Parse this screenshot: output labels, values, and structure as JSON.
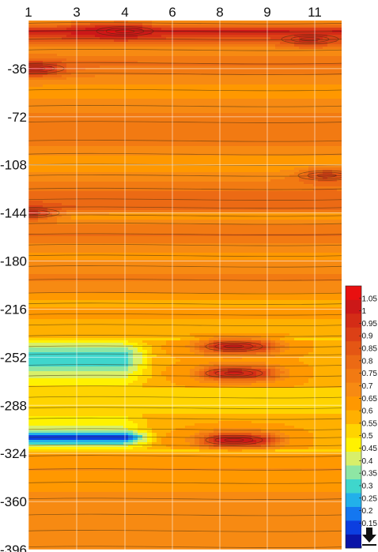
{
  "chart_data": {
    "type": "heatmap",
    "title": "",
    "xlabel": "",
    "ylabel": "",
    "x_ticks": [
      "1",
      "3",
      "4",
      "6",
      "8",
      "9",
      "11"
    ],
    "y_ticks": [
      "-36",
      "-72",
      "-108",
      "-144",
      "-180",
      "-216",
      "-252",
      "-288",
      "-324",
      "-360",
      "-396"
    ],
    "ylim": [
      -396,
      0
    ],
    "grid": true,
    "colorbar": {
      "range": [
        0.05,
        1.1
      ],
      "ticks": [
        "1.05",
        "1",
        "0.95",
        "0.9",
        "0.85",
        "0.8",
        "0.75",
        "0.7",
        "0.65",
        "0.6",
        "0.55",
        "0.5",
        "0.45",
        "0.4",
        "0.35",
        "0.3",
        "0.25",
        "0.2",
        "0.15"
      ],
      "colors": [
        "#0a14a8",
        "#0c3ee0",
        "#1477f0",
        "#22b0ea",
        "#3fd6cc",
        "#8ee6a4",
        "#d8ef6a",
        "#fff200",
        "#ffd400",
        "#ffb000",
        "#ff9800",
        "#f78a12",
        "#f27a12",
        "#ec6a14",
        "#e45614",
        "#dc4016",
        "#d42c16",
        "#cc1818",
        "#e81010"
      ],
      "position": "right"
    },
    "bands": [
      {
        "y": -2,
        "v": 0.68
      },
      {
        "y": -8,
        "v": 1.0
      },
      {
        "y": -14,
        "v": 0.85
      },
      {
        "y": -22,
        "v": 0.66
      },
      {
        "y": -32,
        "v": 0.78
      },
      {
        "y": -40,
        "v": 0.72
      },
      {
        "y": -52,
        "v": 0.63
      },
      {
        "y": -64,
        "v": 0.68
      },
      {
        "y": -76,
        "v": 0.76
      },
      {
        "y": -90,
        "v": 0.74
      },
      {
        "y": -100,
        "v": 0.67
      },
      {
        "y": -108,
        "v": 0.6
      },
      {
        "y": -116,
        "v": 0.68
      },
      {
        "y": -126,
        "v": 0.76
      },
      {
        "y": -134,
        "v": 0.8
      },
      {
        "y": -140,
        "v": 0.82
      },
      {
        "y": -146,
        "v": 0.6
      },
      {
        "y": -152,
        "v": 0.7
      },
      {
        "y": -160,
        "v": 0.78
      },
      {
        "y": -168,
        "v": 0.7
      },
      {
        "y": -176,
        "v": 0.64
      },
      {
        "y": -184,
        "v": 0.7
      },
      {
        "y": -194,
        "v": 0.72
      },
      {
        "y": -204,
        "v": 0.66
      },
      {
        "y": -212,
        "v": 0.58
      },
      {
        "y": -220,
        "v": 0.64
      },
      {
        "y": -228,
        "v": 0.56
      },
      {
        "y": -236,
        "v": 0.6
      },
      {
        "y": -244,
        "v": 0.38
      },
      {
        "y": -250,
        "v": 0.3
      },
      {
        "y": -258,
        "v": 0.32
      },
      {
        "y": -266,
        "v": 0.42
      },
      {
        "y": -274,
        "v": 0.5
      },
      {
        "y": -282,
        "v": 0.55
      },
      {
        "y": -290,
        "v": 0.52
      },
      {
        "y": -298,
        "v": 0.48
      },
      {
        "y": -306,
        "v": 0.42
      },
      {
        "y": -312,
        "v": 0.08
      },
      {
        "y": -318,
        "v": 0.4
      },
      {
        "y": -326,
        "v": 0.62
      },
      {
        "y": -336,
        "v": 0.66
      },
      {
        "y": -346,
        "v": 0.62
      },
      {
        "y": -358,
        "v": 0.68
      },
      {
        "y": -370,
        "v": 0.66
      },
      {
        "y": -382,
        "v": 0.7
      },
      {
        "y": -394,
        "v": 0.68
      }
    ],
    "hotspots": [
      {
        "x": 1.3,
        "y": -36,
        "v": 1.0
      },
      {
        "x": 1.1,
        "y": -144,
        "v": 0.95
      },
      {
        "x": 11.5,
        "y": -116,
        "v": 0.9
      },
      {
        "x": 8.3,
        "y": -244,
        "v": 1.0
      },
      {
        "x": 8.3,
        "y": -264,
        "v": 1.0
      },
      {
        "x": 8.3,
        "y": -314,
        "v": 1.05
      },
      {
        "x": 10.8,
        "y": -14,
        "v": 0.95
      },
      {
        "x": 4.0,
        "y": -8,
        "v": 1.05
      }
    ]
  }
}
